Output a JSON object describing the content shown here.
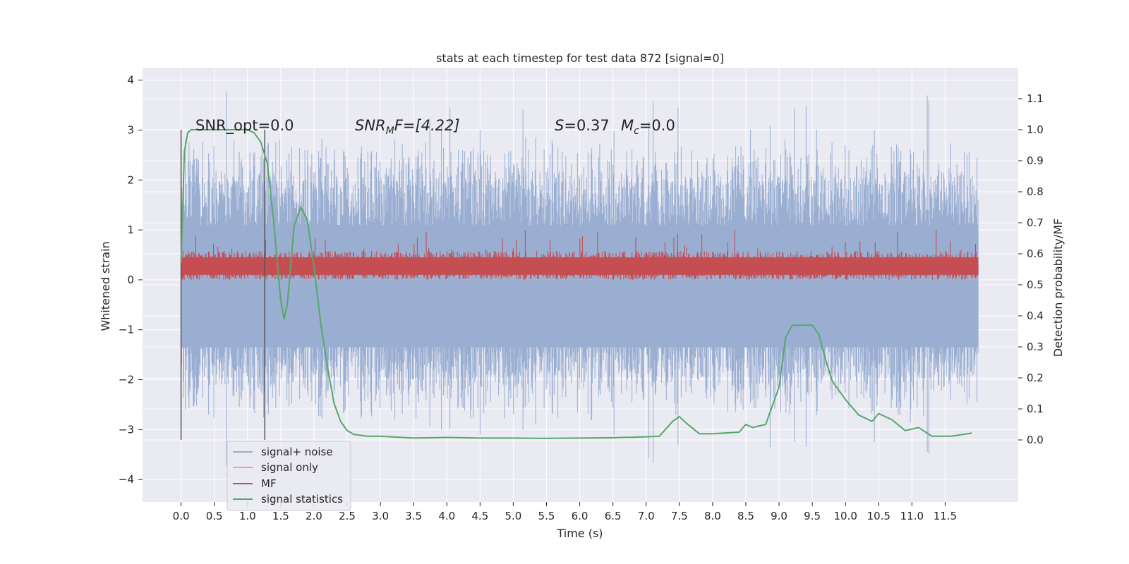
{
  "chart_data": {
    "type": "line",
    "title": "stats at each timestep for test data 872 [signal=0]",
    "xlabel": "Time (s)",
    "ylabel": "Whitened strain",
    "ylabel_right": "Detection probability/MF",
    "xlim": [
      -0.58,
      12.6
    ],
    "ylim": [
      -4.45,
      4.25
    ],
    "ylim_right": [
      -0.2,
      1.2
    ],
    "x_ticks": [
      0.0,
      0.5,
      1.0,
      1.5,
      2.0,
      2.5,
      3.0,
      3.5,
      4.0,
      4.5,
      5.0,
      5.5,
      6.0,
      6.5,
      7.0,
      7.5,
      8.0,
      8.5,
      9.0,
      9.5,
      10.0,
      10.5,
      11.0,
      11.5
    ],
    "x_tick_labels": [
      "0.0",
      "0.5",
      "1.0",
      "1.5",
      "2.0",
      "2.5",
      "3.0",
      "3.5",
      "4.0",
      "4.5",
      "5.0",
      "5.5",
      "6.0",
      "6.5",
      "7.0",
      "7.5",
      "8.0",
      "8.5",
      "9.0",
      "9.5",
      "10.0",
      "10.5",
      "11.0",
      "11.5"
    ],
    "y_ticks": [
      4,
      3,
      2,
      1,
      0,
      -1,
      -2,
      -3,
      -4
    ],
    "y_tick_labels": [
      "4",
      "3",
      "2",
      "1",
      "0",
      "−1",
      "−2",
      "−3",
      "−4"
    ],
    "y_right_ticks": [
      1.1,
      1.0,
      0.9,
      0.8,
      0.7,
      0.6,
      0.5,
      0.4,
      0.3,
      0.2,
      0.1,
      0.0
    ],
    "y_right_tick_labels": [
      "1.1",
      "1.0",
      "0.9",
      "0.8",
      "0.7",
      "0.6",
      "0.5",
      "0.4",
      "0.3",
      "0.2",
      "0.1",
      "0.0"
    ],
    "grid": true,
    "legend_position": "lower-left",
    "annotations": {
      "snr_opt": "SNR_opt=0.0",
      "snr_mf_prefix": "SNR",
      "snr_mf_sub": "M",
      "snr_mf_suffix": "F=[4.22]",
      "s_symbol": "S",
      "s_value": "=0.37",
      "mc_symbol": "M",
      "mc_sub": "c",
      "mc_value": "=0.0"
    },
    "vlines": [
      0.0,
      1.26
    ],
    "series": [
      {
        "name": "signal+ noise",
        "color": "#9aaed2",
        "kind": "noise",
        "x_range": [
          0.0,
          12.0
        ],
        "envelope_typical": [
          -2.3,
          2.3
        ],
        "envelope_peak": [
          -3.75,
          3.9
        ]
      },
      {
        "name": "signal only",
        "color": "#e8a78a",
        "kind": "flat",
        "y": 0.0
      },
      {
        "name": "MF",
        "color": "#c44e52",
        "kind": "band",
        "x_range": [
          0.0,
          12.0
        ],
        "band": [
          0.0,
          0.55
        ],
        "peak": 1.0
      },
      {
        "name": "signal statistics",
        "color": "#55a868",
        "kind": "line",
        "axis": "right",
        "x": [
          0.0,
          0.05,
          0.1,
          0.15,
          0.3,
          0.5,
          0.8,
          1.0,
          1.1,
          1.2,
          1.3,
          1.4,
          1.5,
          1.55,
          1.6,
          1.7,
          1.8,
          1.9,
          2.0,
          2.1,
          2.2,
          2.3,
          2.4,
          2.5,
          2.6,
          2.8,
          3.0,
          3.5,
          4.0,
          4.5,
          5.0,
          5.5,
          6.0,
          6.5,
          7.0,
          7.2,
          7.4,
          7.5,
          7.6,
          7.8,
          8.0,
          8.4,
          8.5,
          8.6,
          8.8,
          9.0,
          9.1,
          9.2,
          9.3,
          9.5,
          9.6,
          9.7,
          9.8,
          10.0,
          10.2,
          10.4,
          10.5,
          10.7,
          10.9,
          11.1,
          11.3,
          11.6,
          11.9
        ],
        "y": [
          0.57,
          0.93,
          0.99,
          1.0,
          1.0,
          1.0,
          1.0,
          1.0,
          0.99,
          0.96,
          0.89,
          0.69,
          0.45,
          0.39,
          0.44,
          0.69,
          0.75,
          0.71,
          0.56,
          0.38,
          0.24,
          0.12,
          0.06,
          0.03,
          0.018,
          0.012,
          0.012,
          0.006,
          0.008,
          0.006,
          0.006,
          0.005,
          0.006,
          0.007,
          0.01,
          0.012,
          0.06,
          0.075,
          0.055,
          0.02,
          0.02,
          0.025,
          0.05,
          0.04,
          0.05,
          0.17,
          0.33,
          0.37,
          0.37,
          0.37,
          0.34,
          0.26,
          0.19,
          0.13,
          0.08,
          0.06,
          0.085,
          0.065,
          0.03,
          0.04,
          0.012,
          0.012,
          0.022
        ]
      }
    ]
  }
}
